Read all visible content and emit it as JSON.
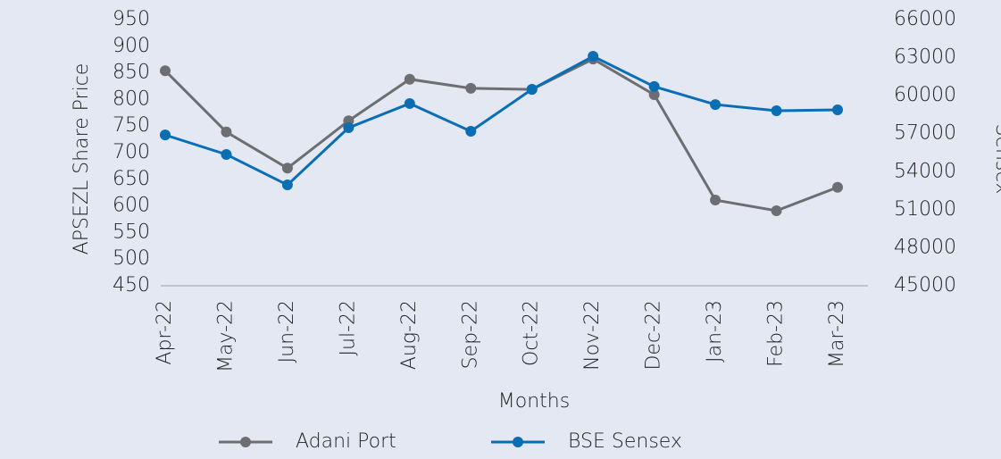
{
  "chart_data": {
    "type": "line",
    "categories": [
      "Apr-22",
      "May-22",
      "Jun-22",
      "Jul-22",
      "Aug-22",
      "Sep-22",
      "Oct-22",
      "Nov-22",
      "Dec-22",
      "Jan-23",
      "Feb-23",
      "Mar-23"
    ],
    "series": [
      {
        "name": "Adani Port",
        "color": "#6d6e71",
        "values": [
          854,
          739,
          671,
          760,
          838,
          821,
          819,
          876,
          809,
          611,
          591,
          635
        ]
      },
      {
        "name": "BSE Sensex",
        "color": "#0a6eb4",
        "axis": "y2",
        "values": [
          56900,
          55360,
          52960,
          57470,
          59380,
          57190,
          60500,
          63110,
          60720,
          59300,
          58810,
          58880
        ]
      }
    ],
    "x_label": "Months",
    "y_label": "APSEZL Share Price",
    "y2_label": "Sensex",
    "ylim": [
      450,
      950
    ],
    "yticks": [
      450,
      500,
      550,
      600,
      650,
      700,
      750,
      800,
      850,
      900,
      950
    ],
    "y2lim": [
      45000,
      66000
    ],
    "y2ticks": [
      45000,
      48000,
      51000,
      54000,
      57000,
      60000,
      63000,
      66000
    ],
    "legend": "bottom"
  }
}
